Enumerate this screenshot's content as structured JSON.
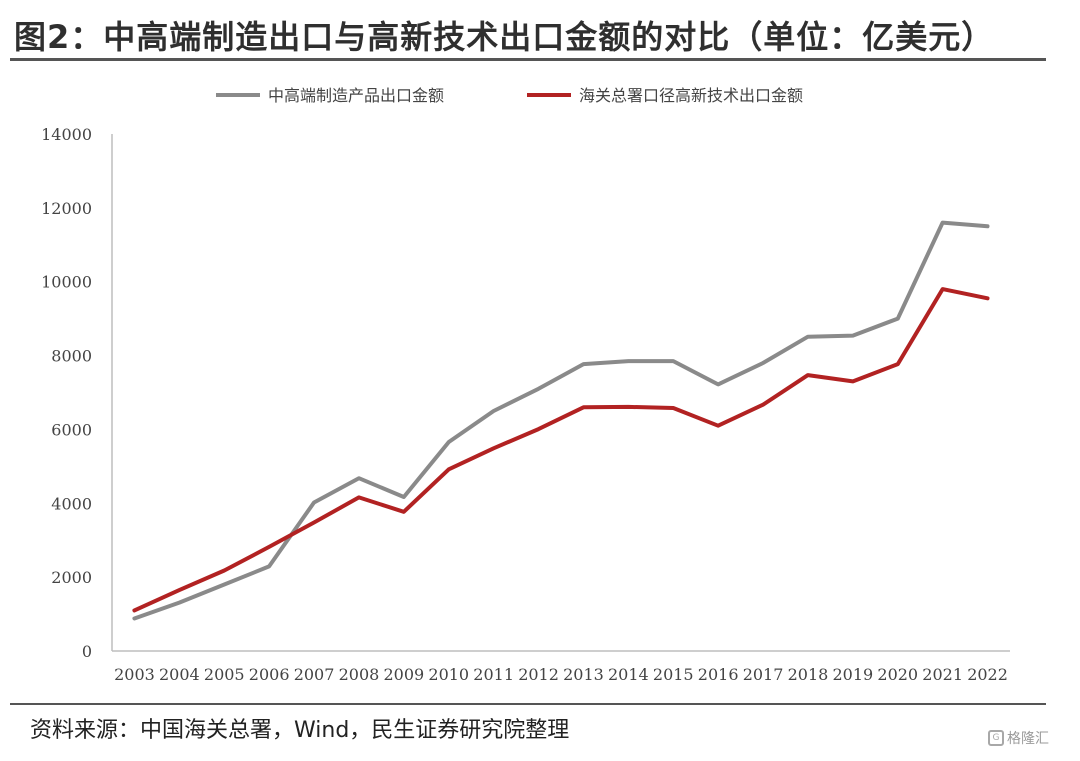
{
  "page": {
    "title": "图2：中高端制造出口与高新技术出口金额的对比（单位：亿美元）",
    "source": "资料来源：中国海关总署，Wind，民生证券研究院整理",
    "watermark": "格隆汇"
  },
  "chart_data": {
    "type": "line",
    "x": [
      "2003",
      "2004",
      "2005",
      "2006",
      "2007",
      "2008",
      "2009",
      "2010",
      "2011",
      "2012",
      "2013",
      "2014",
      "2015",
      "2016",
      "2017",
      "2018",
      "2019",
      "2020",
      "2021",
      "2022"
    ],
    "series": [
      {
        "name": "中高端制造产品出口金额",
        "color": "#8a8a8a",
        "values": [
          880,
          1310,
          1800,
          2290,
          4020,
          4680,
          4170,
          5660,
          6500,
          7100,
          7770,
          7850,
          7850,
          7220,
          7800,
          8510,
          8540,
          9000,
          11600,
          11500
        ]
      },
      {
        "name": "海关总署口径高新技术出口金额",
        "color": "#b22222",
        "values": [
          1100,
          1650,
          2180,
          2820,
          3480,
          4160,
          3770,
          4920,
          5490,
          6010,
          6600,
          6610,
          6580,
          6100,
          6670,
          7470,
          7300,
          7770,
          9800,
          9550
        ]
      }
    ],
    "yticks": [
      "0",
      "2000",
      "4000",
      "6000",
      "8000",
      "10000",
      "12000",
      "14000"
    ],
    "ylim": [
      0,
      14000
    ],
    "grid": false,
    "legend": "top-center"
  }
}
